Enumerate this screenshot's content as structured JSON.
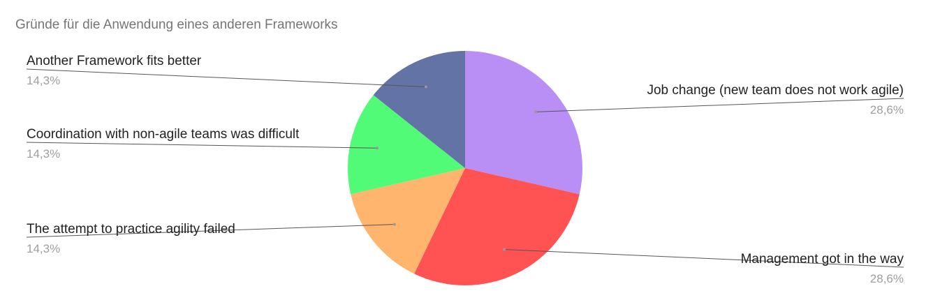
{
  "chart_data": {
    "type": "pie",
    "title": "Gründe für die Anwendung eines anderen Frameworks",
    "slices": [
      {
        "label": "Job change (new team does not work agile)",
        "value": 28.6,
        "value_label": "28,6%",
        "color": "#b98ff5"
      },
      {
        "label": "Management got in the way",
        "value": 28.6,
        "value_label": "28,6%",
        "color": "#ff5252"
      },
      {
        "label": "The attempt to practice agility failed",
        "value": 14.3,
        "value_label": "14,3%",
        "color": "#ffb56e"
      },
      {
        "label": "Coordination with non-agile teams was difficult",
        "value": 14.3,
        "value_label": "14,3%",
        "color": "#51fb78"
      },
      {
        "label": "Another Framework fits better",
        "value": 14.3,
        "value_label": "14,3%",
        "color": "#6373a5"
      }
    ],
    "start_angle": "12 o'clock",
    "direction": "clockwise"
  }
}
